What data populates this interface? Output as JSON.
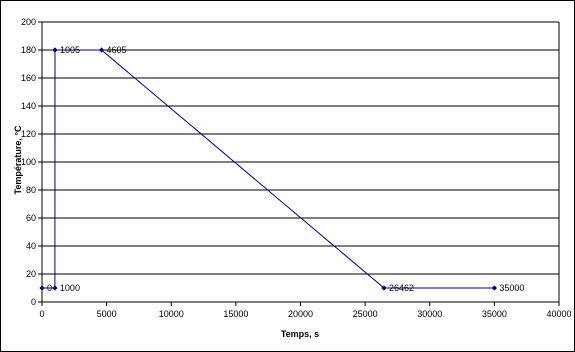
{
  "chart_data": {
    "type": "line",
    "xlabel": "Temps, s",
    "ylabel": "Température, °C",
    "xlim": [
      0,
      40000
    ],
    "ylim": [
      0,
      200
    ],
    "x_ticks": [
      0,
      5000,
      10000,
      15000,
      20000,
      25000,
      30000,
      35000,
      40000
    ],
    "y_ticks": [
      0,
      20,
      40,
      60,
      80,
      100,
      120,
      140,
      160,
      180,
      200
    ],
    "grid": "horizontal",
    "series": [
      {
        "color": "#000080",
        "points": [
          {
            "x": 0,
            "y": 10,
            "label": "0"
          },
          {
            "x": 1000,
            "y": 10,
            "label": "1000"
          },
          {
            "x": 1005,
            "y": 180,
            "label": "1005"
          },
          {
            "x": 4605,
            "y": 180,
            "label": "4605"
          },
          {
            "x": 26462,
            "y": 10,
            "label": "26462"
          },
          {
            "x": 35000,
            "y": 10,
            "label": "35000"
          }
        ]
      }
    ]
  }
}
